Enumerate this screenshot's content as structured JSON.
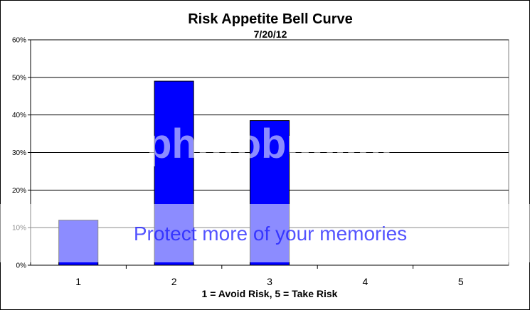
{
  "chart_data": {
    "type": "bar",
    "title": "Risk Appetite Bell Curve",
    "subtitle": "7/20/12",
    "xlabel": "1 = Avoid Risk, 5 = Take Risk",
    "ylabel": "",
    "categories": [
      "1",
      "2",
      "3",
      "4",
      "5"
    ],
    "values": [
      0.12,
      0.49,
      0.385,
      0,
      0
    ],
    "ylim": [
      0,
      0.6
    ],
    "yticks": [
      0,
      0.1,
      0.2,
      0.3,
      0.4,
      0.5,
      0.6
    ],
    "ytick_labels": [
      "0%",
      "10%",
      "20%",
      "30%",
      "40%",
      "50%",
      "60%"
    ],
    "grid": true,
    "legend": "none",
    "bar_color": "#0000ff"
  },
  "watermark": {
    "text_large": "photobucket",
    "text_small": "Protect more of your memories"
  }
}
